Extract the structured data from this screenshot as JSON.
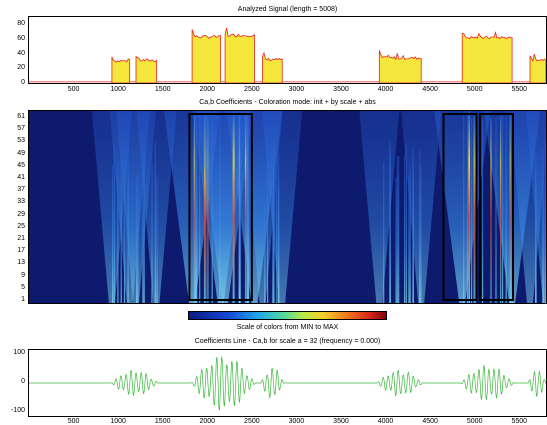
{
  "panels": {
    "signal": {
      "title": "Analyzed Signal  (length = 5008)",
      "yticks": [
        "80",
        "60",
        "40",
        "20",
        "0"
      ],
      "xticks": [
        "500",
        "1000",
        "1500",
        "2000",
        "2500",
        "3000",
        "3500",
        "4000",
        "4500",
        "5000",
        "5500"
      ]
    },
    "coeffs": {
      "title": "Ca,b Coefficients - Coloration mode: init + by scale + abs",
      "yticks": [
        "61",
        "57",
        "53",
        "49",
        "45",
        "41",
        "37",
        "33",
        "29",
        "25",
        "21",
        "17",
        "13",
        "9",
        "5",
        "1"
      ]
    },
    "colorbar": {
      "caption": "Scale of colors from MIN to MAX"
    },
    "line": {
      "title": "Coefficients Line - Ca,b for scale a = 32  (frequency =  0.000)",
      "yticks": [
        "100",
        "0",
        "-100"
      ],
      "xticks": [
        "500",
        "1000",
        "1500",
        "2000",
        "2500",
        "3000",
        "3500",
        "4000",
        "4500",
        "5000",
        "5500"
      ]
    }
  },
  "colors": {
    "signal_fill": "#f5e63c",
    "signal_line": "#e8231f",
    "coeff_background": "#0d1a6e",
    "coeff_line": "#3cb83c"
  },
  "chart_data": [
    {
      "type": "area",
      "title": "Analyzed Signal  (length = 5008)",
      "xlim": [
        0,
        5800
      ],
      "ylim": [
        0,
        90
      ],
      "segments": [
        {
          "x0": 930,
          "x1": 1130,
          "value": 30
        },
        {
          "x0": 1200,
          "x1": 1430,
          "value": 31
        },
        {
          "x0": 1830,
          "x1": 2150,
          "value": 63
        },
        {
          "x0": 2200,
          "x1": 2530,
          "value": 65
        },
        {
          "x0": 2620,
          "x1": 2840,
          "value": 32
        },
        {
          "x0": 3930,
          "x1": 4400,
          "value": 34
        },
        {
          "x0": 4860,
          "x1": 5420,
          "value": 62
        },
        {
          "x0": 5620,
          "x1": 5800,
          "value": 32
        }
      ]
    },
    {
      "type": "heatmap",
      "title": "Ca,b Coefficients - Coloration mode: init + by scale + abs",
      "xlim": [
        0,
        5800
      ],
      "ylim": [
        1,
        64
      ],
      "highlight_boxes": [
        {
          "x0": 1800,
          "x1": 2500
        },
        {
          "x0": 4650,
          "x1": 5020
        },
        {
          "x0": 5060,
          "x1": 5430
        }
      ]
    },
    {
      "type": "line",
      "title": "Coefficients Line - Ca,b for scale a = 32  (frequency =  0.000)",
      "xlim": [
        0,
        5800
      ],
      "ylim": [
        -100,
        100
      ],
      "bursts": [
        {
          "x0": 920,
          "x1": 1450,
          "amplitude": 40
        },
        {
          "x0": 1820,
          "x1": 2540,
          "amplitude": 85
        },
        {
          "x0": 2600,
          "x1": 2860,
          "amplitude": 50
        },
        {
          "x0": 3900,
          "x1": 4420,
          "amplitude": 40
        },
        {
          "x0": 4840,
          "x1": 5440,
          "amplitude": 55
        },
        {
          "x0": 5600,
          "x1": 5800,
          "amplitude": 45
        }
      ]
    }
  ]
}
